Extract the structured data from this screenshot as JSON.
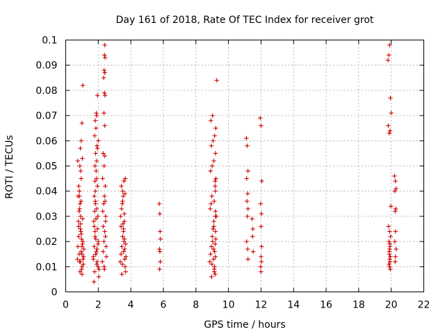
{
  "chart_data": {
    "type": "scatter",
    "title": "Day 161 of 2018, Rate Of TEC Index for receiver grot",
    "xlabel": "GPS time / hours",
    "ylabel": "ROTI / TECUs",
    "xlim": [
      0,
      22
    ],
    "ylim": [
      0,
      0.1
    ],
    "xticks": [
      0,
      2,
      4,
      6,
      8,
      10,
      12,
      14,
      16,
      18,
      20,
      22
    ],
    "yticks": [
      0,
      0.01,
      0.02,
      0.03,
      0.04,
      0.05,
      0.06,
      0.07,
      0.08,
      0.09,
      0.1
    ],
    "ytick_labels": [
      "0",
      "0.01",
      "0.02",
      "0.03",
      "0.04",
      "0.05",
      "0.06",
      "0.07",
      "0.08",
      "0.09",
      "0.1"
    ],
    "grid": true,
    "marker_color": "#cc0000",
    "series": [
      {
        "marker": "plus",
        "x": [
          0.72,
          0.75,
          0.8,
          0.85,
          0.9,
          0.95,
          1.0,
          1.05,
          1.1,
          0.78,
          0.82,
          0.88,
          0.93,
          0.98,
          1.03,
          0.76,
          0.84,
          0.91,
          1.0,
          1.08,
          0.8,
          0.87,
          0.95,
          1.02,
          0.74,
          0.9,
          0.95,
          1.0,
          1.05,
          0.85,
          0.92,
          0.97,
          1.12,
          0.88,
          1.0,
          0.83,
          0.9,
          0.96,
          1.04,
          0.79,
          0.86,
          0.94,
          1.0,
          1.06,
          0.92,
          1.7,
          1.75,
          1.8,
          1.85,
          1.9,
          1.95,
          2.0,
          2.05,
          1.72,
          1.78,
          1.83,
          1.88,
          1.93,
          1.98,
          2.03,
          1.76,
          1.82,
          1.9,
          1.97,
          1.7,
          1.8,
          1.87,
          1.95,
          1.74,
          1.84,
          1.92,
          2.0,
          1.78,
          1.86,
          1.82,
          1.9,
          1.88,
          1.95,
          1.8,
          1.85,
          1.92,
          1.75,
          1.82,
          1.9,
          1.98,
          1.86,
          1.8,
          1.9,
          1.95,
          1.78,
          1.85,
          2.25,
          2.3,
          2.35,
          2.4,
          2.45,
          2.5,
          2.28,
          2.33,
          2.38,
          2.43,
          2.48,
          2.27,
          2.36,
          2.44,
          2.3,
          2.4,
          2.35,
          2.42,
          2.38,
          2.33,
          2.4,
          2.36,
          2.42,
          2.38,
          2.4,
          2.36,
          2.3,
          2.45,
          2.38,
          2.42,
          2.4,
          3.35,
          3.4,
          3.45,
          3.5,
          3.55,
          3.6,
          3.65,
          3.7,
          3.38,
          3.43,
          3.48,
          3.53,
          3.58,
          3.63,
          3.68,
          3.42,
          3.5,
          3.58,
          3.66,
          3.45,
          3.55,
          3.62,
          3.4,
          3.5,
          3.6,
          3.68,
          3.48,
          3.56,
          3.64,
          3.52,
          3.6,
          5.75,
          5.78,
          5.8,
          5.82,
          5.76,
          5.79,
          5.81,
          5.77,
          8.85,
          8.9,
          8.95,
          9.0,
          9.05,
          9.1,
          9.15,
          9.2,
          9.25,
          8.88,
          8.93,
          8.98,
          9.03,
          9.08,
          9.13,
          9.18,
          9.23,
          8.9,
          9.0,
          9.1,
          9.2,
          8.95,
          9.05,
          9.15,
          9.22,
          8.92,
          9.02,
          9.12,
          9.2,
          8.98,
          9.08,
          9.18,
          9.1,
          9.2,
          9.15,
          9.22,
          9.18,
          9.12,
          8.96,
          9.2,
          9.28,
          9.18,
          9.2,
          11.1,
          11.15,
          11.2,
          11.12,
          11.18,
          11.14,
          11.2,
          11.16,
          11.12,
          11.18,
          11.2,
          11.45,
          11.5,
          11.48,
          11.52,
          11.95,
          12.0,
          12.05,
          11.98,
          12.02,
          12.0,
          12.04,
          12.0,
          12.02,
          11.98,
          12.0,
          19.8,
          19.85,
          19.9,
          19.95,
          20.0,
          19.82,
          19.88,
          19.93,
          19.98,
          19.84,
          19.9,
          19.96,
          19.86,
          19.92,
          19.88,
          19.94,
          19.9,
          19.92,
          19.86,
          19.9,
          19.94,
          19.9,
          19.92,
          19.88,
          20.2,
          20.25,
          20.3,
          20.22,
          20.28,
          20.24,
          20.26,
          20.22,
          20.3,
          20.26,
          20.24
        ],
        "y": [
          0.013,
          0.018,
          0.022,
          0.012,
          0.025,
          0.016,
          0.01,
          0.02,
          0.014,
          0.028,
          0.032,
          0.035,
          0.024,
          0.009,
          0.019,
          0.038,
          0.04,
          0.03,
          0.015,
          0.011,
          0.042,
          0.05,
          0.045,
          0.053,
          0.052,
          0.057,
          0.06,
          0.067,
          0.082,
          0.038,
          0.027,
          0.021,
          0.017,
          0.008,
          0.007,
          0.015,
          0.012,
          0.023,
          0.029,
          0.026,
          0.033,
          0.036,
          0.018,
          0.013,
          0.048,
          0.013,
          0.018,
          0.022,
          0.015,
          0.011,
          0.025,
          0.02,
          0.009,
          0.028,
          0.032,
          0.035,
          0.016,
          0.012,
          0.019,
          0.006,
          0.038,
          0.04,
          0.045,
          0.03,
          0.014,
          0.05,
          0.048,
          0.042,
          0.004,
          0.055,
          0.058,
          0.06,
          0.062,
          0.065,
          0.068,
          0.07,
          0.071,
          0.078,
          0.024,
          0.021,
          0.017,
          0.026,
          0.036,
          0.033,
          0.01,
          0.029,
          0.044,
          0.052,
          0.057,
          0.008,
          0.015,
          0.012,
          0.016,
          0.02,
          0.024,
          0.028,
          0.014,
          0.032,
          0.035,
          0.038,
          0.042,
          0.018,
          0.045,
          0.05,
          0.022,
          0.055,
          0.066,
          0.071,
          0.078,
          0.079,
          0.085,
          0.087,
          0.088,
          0.093,
          0.094,
          0.098,
          0.01,
          0.026,
          0.03,
          0.009,
          0.036,
          0.054,
          0.012,
          0.015,
          0.018,
          0.022,
          0.025,
          0.028,
          0.01,
          0.014,
          0.03,
          0.033,
          0.035,
          0.038,
          0.02,
          0.017,
          0.008,
          0.042,
          0.04,
          0.044,
          0.045,
          0.007,
          0.024,
          0.013,
          0.026,
          0.036,
          0.031,
          0.019,
          0.011,
          0.016,
          0.039,
          0.027,
          0.021,
          0.035,
          0.031,
          0.024,
          0.021,
          0.017,
          0.016,
          0.012,
          0.009,
          0.012,
          0.015,
          0.018,
          0.022,
          0.025,
          0.028,
          0.01,
          0.014,
          0.03,
          0.033,
          0.035,
          0.038,
          0.02,
          0.017,
          0.008,
          0.042,
          0.045,
          0.048,
          0.05,
          0.052,
          0.055,
          0.058,
          0.06,
          0.062,
          0.065,
          0.068,
          0.07,
          0.036,
          0.024,
          0.011,
          0.013,
          0.019,
          0.026,
          0.032,
          0.016,
          0.021,
          0.044,
          0.009,
          0.006,
          0.04,
          0.084,
          0.007,
          0.03,
          0.061,
          0.058,
          0.048,
          0.045,
          0.039,
          0.036,
          0.033,
          0.03,
          0.02,
          0.017,
          0.013,
          0.029,
          0.025,
          0.022,
          0.016,
          0.069,
          0.066,
          0.044,
          0.035,
          0.031,
          0.026,
          0.018,
          0.014,
          0.012,
          0.01,
          0.008,
          0.092,
          0.094,
          0.098,
          0.077,
          0.071,
          0.066,
          0.063,
          0.064,
          0.034,
          0.026,
          0.024,
          0.022,
          0.02,
          0.018,
          0.016,
          0.014,
          0.013,
          0.012,
          0.011,
          0.01,
          0.009,
          0.017,
          0.019,
          0.015,
          0.046,
          0.044,
          0.041,
          0.04,
          0.033,
          0.032,
          0.024,
          0.02,
          0.017,
          0.014,
          0.012
        ]
      }
    ]
  }
}
